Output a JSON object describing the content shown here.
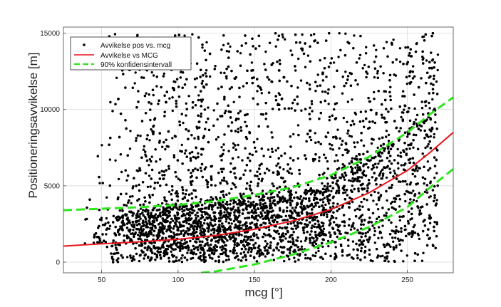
{
  "chart_data": {
    "type": "scatter",
    "xlabel": "mcg [°]",
    "ylabel": "Positioneringsavvikelse [m]",
    "xlim": [
      25,
      280
    ],
    "ylim": [
      -700,
      15400
    ],
    "xticks": [
      50,
      100,
      150,
      200,
      250
    ],
    "yticks": [
      0,
      5000,
      10000,
      15000
    ],
    "grid": true,
    "legend_position": "top-left",
    "series": [
      {
        "name": "Avvikelse pos vs. mcg",
        "kind": "points",
        "color": "#000000",
        "density_profile": {
          "x": [
            35,
            45,
            55,
            65,
            75,
            85,
            100,
            120,
            140,
            160,
            180,
            200,
            220,
            240,
            260,
            270
          ],
          "relative_density": [
            0.02,
            0.08,
            0.3,
            0.6,
            0.85,
            1.0,
            1.0,
            0.95,
            0.9,
            0.85,
            0.8,
            0.75,
            0.7,
            0.65,
            0.6,
            0.55
          ],
          "dense_band_upper": [
            1600,
            2100,
            2800,
            3200,
            3400,
            3500,
            3600,
            3700,
            3900,
            4100,
            4500,
            5200,
            6200,
            7600,
            9000,
            9600
          ],
          "sparse_upper": [
            2000,
            7000,
            15000,
            15000,
            15000,
            15000,
            15000,
            15000,
            15000,
            15000,
            15000,
            15000,
            15000,
            15000,
            15000,
            15000
          ],
          "lower": [
            600,
            300,
            0,
            0,
            0,
            0,
            0,
            0,
            0,
            0,
            0,
            0,
            0,
            0,
            0,
            0
          ]
        },
        "x_max": 270
      },
      {
        "name": "Avvikelse vs MCG",
        "kind": "line",
        "color": "#e8141c",
        "x": [
          25,
          50,
          75,
          100,
          125,
          150,
          175,
          200,
          225,
          250,
          265,
          280
        ],
        "y": [
          1050,
          1200,
          1330,
          1500,
          1750,
          2150,
          2700,
          3450,
          4550,
          6000,
          7200,
          8500
        ]
      },
      {
        "name": "90% konfidensintervall",
        "kind": "dashed-line",
        "color": "#2ee61c",
        "upper": {
          "x": [
            25,
            50,
            75,
            100,
            125,
            150,
            175,
            200,
            225,
            250,
            265,
            280
          ],
          "y": [
            3400,
            3500,
            3600,
            3750,
            4000,
            4400,
            4900,
            5700,
            6900,
            8500,
            9700,
            10800
          ]
        },
        "lower": {
          "x": [
            115,
            125,
            150,
            175,
            200,
            225,
            250,
            265,
            280
          ],
          "y": [
            -700,
            -600,
            -150,
            500,
            1300,
            2300,
            3600,
            4900,
            6100
          ]
        }
      }
    ]
  }
}
